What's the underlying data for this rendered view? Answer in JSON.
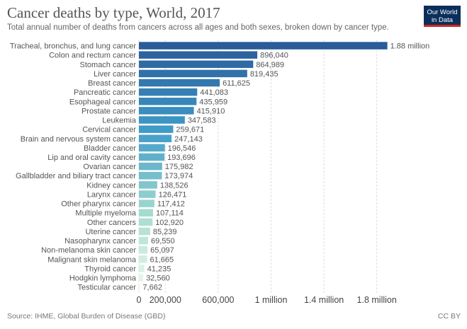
{
  "header": {
    "title": "Cancer deaths by type, World, 2017",
    "subtitle": "Total annual number of deaths from cancers across all ages and both sexes, broken down by cancer type.",
    "logo_line1": "Our World",
    "logo_line2": "in Data"
  },
  "footer": {
    "source": "Source: IHME, Global Burden of Disease (GBD)",
    "license": "CC BY"
  },
  "colors": {
    "bar_top": "#2a5c9a",
    "bar_mid": "#3f9cc9",
    "bar_low": "#a6dccf",
    "bar_bottom": "#eef8ec"
  },
  "chart_data": {
    "type": "bar",
    "orientation": "horizontal",
    "title": "Cancer deaths by type, World, 2017",
    "xlabel": "",
    "ylabel": "",
    "xlim": [
      0,
      2000000
    ],
    "grid": true,
    "tick_values": [
      0,
      200000,
      600000,
      1000000,
      1400000,
      1800000
    ],
    "tick_labels": [
      "0",
      "200,000",
      "600,000",
      "1 million",
      "1.4 million",
      "1.8 million"
    ],
    "categories": [
      "Tracheal, bronchus, and lung cancer",
      "Colon and rectum cancer",
      "Stomach cancer",
      "Liver cancer",
      "Breast cancer",
      "Pancreatic cancer",
      "Esophageal cancer",
      "Prostate cancer",
      "Leukemia",
      "Cervical cancer",
      "Brain and nervous system cancer",
      "Bladder cancer",
      "Lip and oral cavity cancer",
      "Ovarian cancer",
      "Gallbladder and biliary tract cancer",
      "Kidney cancer",
      "Larynx cancer",
      "Other pharynx cancer",
      "Multiple myeloma",
      "Other cancers",
      "Uterine cancer",
      "Nasopharynx cancer",
      "Non-melanoma skin cancer",
      "Malignant skin melanoma",
      "Thyroid cancer",
      "Hodgkin lymphoma",
      "Testicular cancer"
    ],
    "values": [
      1880000,
      896040,
      864989,
      819435,
      611625,
      441083,
      435959,
      415910,
      347583,
      259671,
      247143,
      196546,
      193696,
      175982,
      173974,
      138526,
      126471,
      117412,
      107114,
      102920,
      85239,
      69550,
      65097,
      61665,
      41235,
      32560,
      7662
    ],
    "value_labels": [
      "1.88 million",
      "896,040",
      "864,989",
      "819,435",
      "611,625",
      "441,083",
      "435,959",
      "415,910",
      "347,583",
      "259,671",
      "247,143",
      "196,546",
      "193,696",
      "175,982",
      "173,974",
      "138,526",
      "126,471",
      "117,412",
      "107,114",
      "102,920",
      "85,239",
      "69,550",
      "65,097",
      "61,665",
      "41,235",
      "32,560",
      "7,662"
    ]
  }
}
